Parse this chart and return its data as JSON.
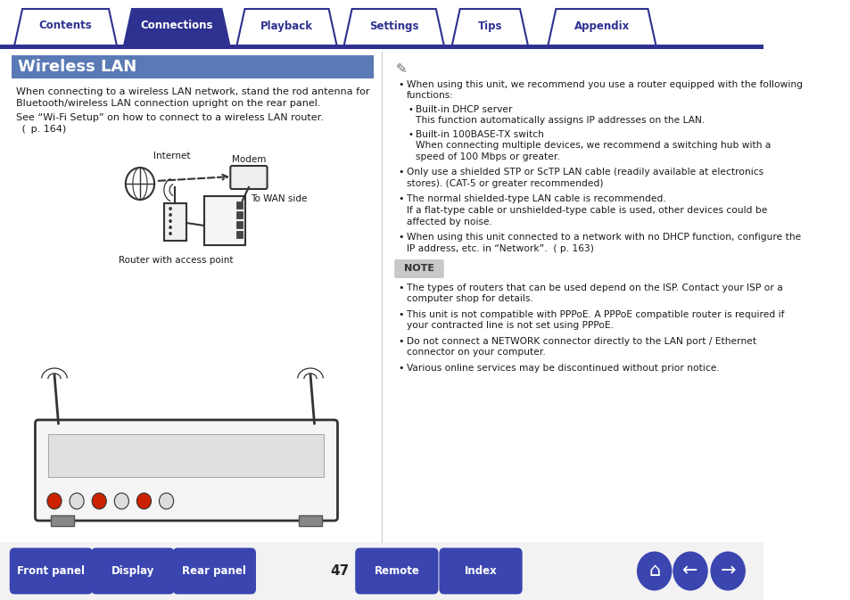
{
  "bg_color": "#ffffff",
  "tab_bar_color": "#2e3190",
  "tab_active_color": "#2e3190",
  "tab_inactive_color": "#ffffff",
  "tabs": [
    "Contents",
    "Connections",
    "Playback",
    "Settings",
    "Tips",
    "Appendix"
  ],
  "active_tab": 1,
  "title_bg": "#5a7ab5",
  "title_text": "Wireless LAN",
  "title_color": "#ffffff",
  "body_text_color": "#1a1a1a",
  "note_bg": "#c8c8c8",
  "note_text": "NOTE",
  "bottom_btn_color": "#3a45b0",
  "bottom_btns": [
    "Front panel",
    "Display",
    "Rear panel",
    "Remote",
    "Index"
  ],
  "page_number": "47",
  "para1_l1": "When connecting to a wireless LAN network, stand the rod antenna for",
  "para1_l2": "Bluetooth/wireless LAN connection upright on the rear panel.",
  "para2_l1": "See “Wi-Fi Setup” on how to connect to a wireless LAN router.",
  "para2_l2": " (  p. 164)",
  "b1_l1": "When using this unit, we recommend you use a router equipped with the following",
  "b1_l2": "functions:",
  "sb1_l1": "Built-in DHCP server",
  "sb1_l2": "This function automatically assigns IP addresses on the LAN.",
  "sb2_l1": "Built-in 100BASE-TX switch",
  "sb2_l2": "When connecting multiple devices, we recommend a switching hub with a",
  "sb2_l3": "speed of 100 Mbps or greater.",
  "b2_l1": "Only use a shielded STP or ScTP LAN cable (readily available at electronics",
  "b2_l2": "stores). (CAT-5 or greater recommended)",
  "b3_l1": "The normal shielded-type LAN cable is recommended.",
  "b3_l2": "If a flat-type cable or unshielded-type cable is used, other devices could be",
  "b3_l3": "affected by noise.",
  "b4_l1": "When using this unit connected to a network with no DHCP function, configure the",
  "b4_l2": "IP address, etc. in “Network”.  ( p. 163)",
  "nb1_l1": "The types of routers that can be used depend on the ISP. Contact your ISP or a",
  "nb1_l2": "computer shop for details.",
  "nb2_l1": "This unit is not compatible with PPPoE. A PPPoE compatible router is required if",
  "nb2_l2": "your contracted line is not set using PPPoE.",
  "nb3_l1": "Do not connect a NETWORK connector directly to the LAN port / Ethernet",
  "nb3_l2": "connector on your computer.",
  "nb4_l1": "Various online services may be discontinued without prior notice."
}
